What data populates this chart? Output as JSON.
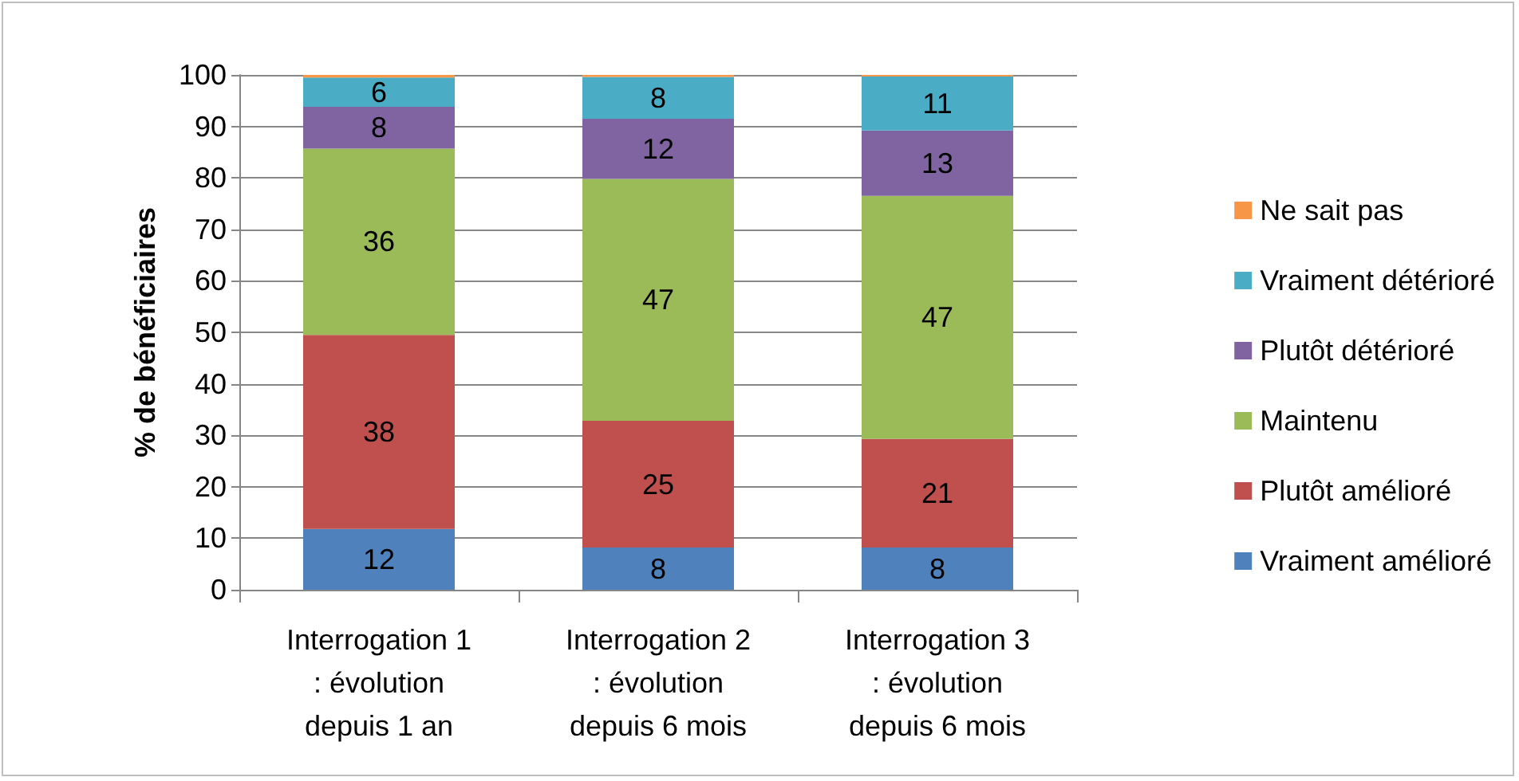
{
  "chart_data": {
    "type": "bar",
    "stacked": true,
    "ylabel": "% de bénéficiaires",
    "categories": [
      "Interrogation 1\n: évolution\ndepuis 1 an",
      "Interrogation 2\n: évolution\ndepuis 6 mois",
      "Interrogation 3\n: évolution\ndepuis 6 mois"
    ],
    "series": [
      {
        "name": "Vraiment amélioré",
        "color": "#4f81bd",
        "values": [
          11.8,
          8.2,
          8.2
        ],
        "value_labels": [
          "12",
          "8",
          "8"
        ]
      },
      {
        "name": "Plutôt amélioré",
        "color": "#c0504d",
        "values": [
          37.7,
          24.6,
          21.1
        ],
        "value_labels": [
          "38",
          "25",
          "21"
        ]
      },
      {
        "name": "Maintenu",
        "color": "#9bbb59",
        "values": [
          36.2,
          47.0,
          47.2
        ],
        "value_labels": [
          "36",
          "47",
          "47"
        ]
      },
      {
        "name": "Plutôt détérioré",
        "color": "#8064a2",
        "values": [
          8.1,
          11.7,
          12.7
        ],
        "value_labels": [
          "8",
          "12",
          "13"
        ]
      },
      {
        "name": "Vraiment détérioré",
        "color": "#4bacc6",
        "values": [
          5.7,
          8.1,
          10.5
        ],
        "value_labels": [
          "6",
          "8",
          "11"
        ]
      },
      {
        "name": "Ne sait pas",
        "color": "#f79646",
        "values": [
          0.5,
          0.4,
          0.3
        ]
      }
    ],
    "ylim": [
      0,
      100
    ],
    "yticks": [
      0,
      10,
      20,
      30,
      40,
      50,
      60,
      70,
      80,
      90,
      100
    ],
    "grid": "y",
    "legend": "right"
  }
}
